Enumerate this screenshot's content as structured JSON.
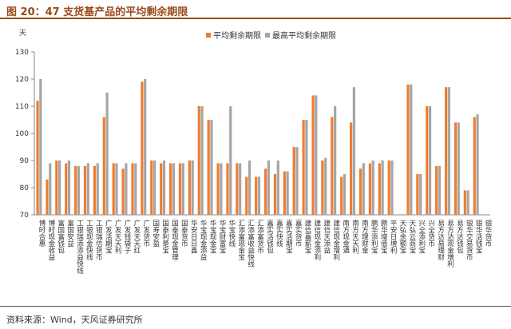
{
  "figure": {
    "title": "图 20：47 支货基产品的平均剩余期限",
    "source": "资料来源：Wind，天风证券研究所"
  },
  "chart_data": {
    "type": "bar",
    "ylabel": "天",
    "ylim": [
      70,
      130
    ],
    "yticks": [
      70,
      80,
      90,
      100,
      110,
      120,
      130
    ],
    "grid": false,
    "legend": "top-center",
    "categories": [
      "博时合惠",
      "博时现金收益",
      "富国富钱包",
      "富国安益",
      "工银瑞添添益快线",
      "工银现金快线",
      "工银瑞信货币",
      "广发活期宝",
      "广发天天利",
      "广发钱袋子",
      "广发天天红",
      "广发货币",
      "国寿安盈",
      "国泰利是宝",
      "国泰现金管理",
      "国泰货币",
      "华安日日鑫",
      "华宝现金添益",
      "华宝现金宝",
      "华宝财富宝",
      "华宝快线",
      "汇添富现金宝",
      "汇添富收益快线",
      "汇添富货币",
      "嘉实活钱包",
      "嘉实快线",
      "嘉实活期宝",
      "嘉实货币",
      "建信嘉薪宝",
      "建信现金添利",
      "建信天添益",
      "建信现金增利",
      "南方现金通",
      "南方天天利",
      "南方理财金",
      "鹏华添利宝",
      "鹏华增值宝",
      "平安日增利",
      "天弘余额宝",
      "天弘云商宝",
      "兴全添利宝",
      "兴全货币",
      "易方达易理财",
      "易方达现金增利",
      "易方达钱包",
      "银华交易货币",
      "银华活钱宝",
      "银华货币"
    ],
    "series": [
      {
        "name": "平均剩余期限",
        "color": "#ed7d31",
        "values": [
          112,
          83,
          90,
          89,
          88,
          88,
          88,
          106,
          89,
          87,
          89,
          119,
          90,
          89,
          89,
          89,
          90,
          110,
          105,
          89,
          89,
          89,
          84,
          84,
          87,
          85,
          86,
          95,
          105,
          114,
          90,
          106,
          84,
          104,
          87,
          89,
          89,
          90,
          null,
          118,
          85,
          110,
          88,
          117,
          104,
          79,
          106,
          null
        ]
      },
      {
        "name": "最高平均剩余期限",
        "color": "#a5a5a5",
        "values": [
          120,
          89,
          90,
          90,
          88,
          89,
          89,
          115,
          89,
          89,
          89,
          120,
          90,
          90,
          89,
          89,
          90,
          110,
          105,
          89,
          110,
          89,
          90,
          84,
          90,
          90,
          86,
          95,
          105,
          114,
          91,
          110,
          85,
          117,
          89,
          90,
          90,
          90,
          null,
          118,
          85,
          110,
          88,
          117,
          104,
          79,
          107,
          null
        ]
      }
    ]
  }
}
